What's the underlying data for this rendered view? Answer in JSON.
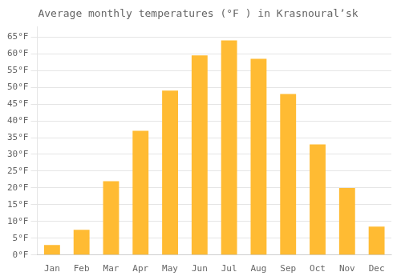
{
  "chart_data": {
    "type": "bar",
    "title": "Average monthly temperatures (°F ) in Krasnouralʼsk",
    "categories": [
      "Jan",
      "Feb",
      "Mar",
      "Apr",
      "May",
      "Jun",
      "Jul",
      "Aug",
      "Sep",
      "Oct",
      "Nov",
      "Dec"
    ],
    "values": [
      3,
      7.5,
      22,
      37,
      49,
      59.5,
      64,
      58.5,
      48,
      33,
      20,
      8.5
    ],
    "color": "#FFBB33",
    "ylim": [
      0,
      68
    ],
    "yticks": [
      {
        "value": 0,
        "label": "0°F"
      },
      {
        "value": 5,
        "label": "5°F"
      },
      {
        "value": 10,
        "label": "10°F"
      },
      {
        "value": 15,
        "label": "15°F"
      },
      {
        "value": 20,
        "label": "20°F"
      },
      {
        "value": 25,
        "label": "25°F"
      },
      {
        "value": 30,
        "label": "30°F"
      },
      {
        "value": 35,
        "label": "35°F"
      },
      {
        "value": 40,
        "label": "40°F"
      },
      {
        "value": 45,
        "label": "45°F"
      },
      {
        "value": 50,
        "label": "50°F"
      },
      {
        "value": 55,
        "label": "55°F"
      },
      {
        "value": 60,
        "label": "60°F"
      },
      {
        "value": 65,
        "label": "65°F"
      }
    ],
    "grid": true
  }
}
